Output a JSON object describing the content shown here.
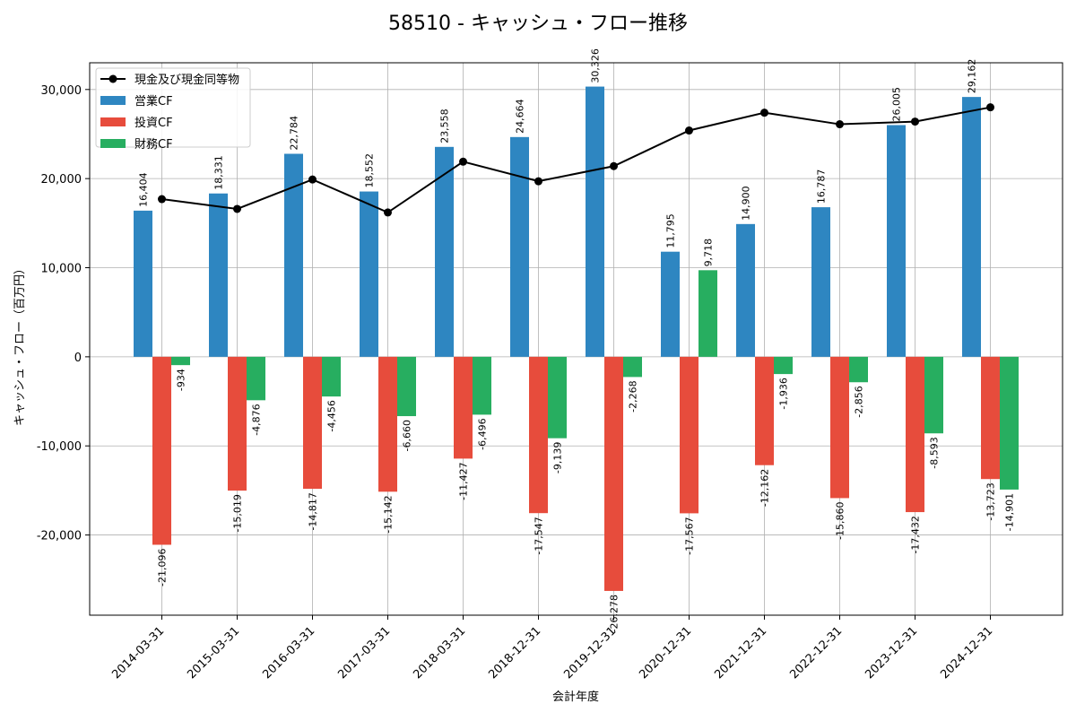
{
  "chart_data": {
    "type": "bar",
    "title": "58510 - キャッシュ・フロー推移",
    "xlabel": "会計年度",
    "ylabel": "キャッシュ・フロー（百万円）",
    "categories": [
      "2014-03-31",
      "2015-03-31",
      "2016-03-31",
      "2017-03-31",
      "2018-03-31",
      "2018-12-31",
      "2019-12-31",
      "2020-12-31",
      "2021-12-31",
      "2022-12-31",
      "2023-12-31",
      "2024-12-31"
    ],
    "ylim": [
      -29000,
      33000
    ],
    "yticks": [
      -20000,
      -10000,
      0,
      10000,
      20000,
      30000
    ],
    "ytick_labels": [
      "-20,000",
      "-10,000",
      "0",
      "10,000",
      "20,000",
      "30,000"
    ],
    "grid": true,
    "legend_position": "top-left",
    "series": [
      {
        "name": "営業CF",
        "type": "bar",
        "color": "#2e86c1",
        "values": [
          16404,
          18331,
          22784,
          18552,
          23558,
          24664,
          30326,
          11795,
          14900,
          16787,
          26005,
          29162
        ],
        "labels": [
          "16,404",
          "18,331",
          "22,784",
          "18,552",
          "23,558",
          "24,664",
          "30,326",
          "11,795",
          "14,900",
          "16,787",
          "26,005",
          "29,162"
        ]
      },
      {
        "name": "投資CF",
        "type": "bar",
        "color": "#e74c3c",
        "values": [
          -21096,
          -15019,
          -14817,
          -15142,
          -11427,
          -17547,
          -26278,
          -17567,
          -12162,
          -15860,
          -17432,
          -13723
        ],
        "labels": [
          "-21,096",
          "-15,019",
          "-14,817",
          "-15,142",
          "-11,427",
          "-17,547",
          "-26,278",
          "-17,567",
          "-12,162",
          "-15,860",
          "-17,432",
          "-13,723"
        ]
      },
      {
        "name": "財務CF",
        "type": "bar",
        "color": "#27ae60",
        "values": [
          -934,
          -4876,
          -4456,
          -6660,
          -6496,
          -9139,
          -2268,
          9718,
          -1936,
          -2856,
          -8593,
          -14901
        ],
        "labels": [
          "-934",
          "-4,876",
          "-4,456",
          "-6,660",
          "-6,496",
          "-9,139",
          "-2,268",
          "9,718",
          "-1,936",
          "-2,856",
          "-8,593",
          "-14,901"
        ]
      },
      {
        "name": "現金及び現金同等物",
        "type": "line",
        "color": "#000000",
        "values": [
          17700,
          16600,
          19900,
          16200,
          21900,
          19700,
          21400,
          25400,
          27400,
          26100,
          26400,
          28000
        ]
      }
    ]
  }
}
